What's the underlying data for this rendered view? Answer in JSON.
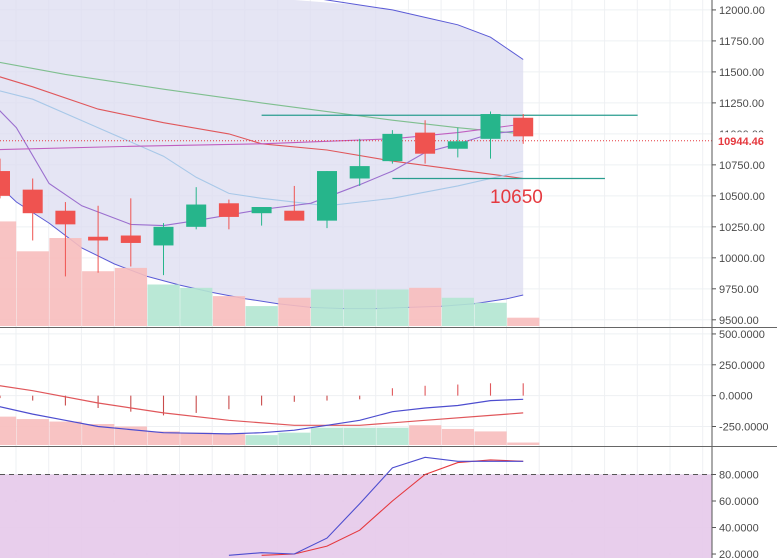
{
  "chart_data": [
    {
      "type": "candlestick",
      "panel": "price",
      "yticks": [
        "12000.00",
        "11750.00",
        "11500.00",
        "11250.00",
        "11000.00",
        "10750.00",
        "10500.00",
        "10250.00",
        "10000.00",
        "9750.00",
        "9500.00"
      ],
      "ylim": [
        9450,
        12080
      ],
      "current_price": "10944.46",
      "annotation": "10650",
      "candles": [
        {
          "o": 10700,
          "h": 10800,
          "l": 10480,
          "c": 10500
        },
        {
          "o": 10550,
          "h": 10640,
          "l": 10140,
          "c": 10360
        },
        {
          "o": 10380,
          "h": 10450,
          "l": 9850,
          "c": 10270
        },
        {
          "o": 10170,
          "h": 10420,
          "l": 9880,
          "c": 10140
        },
        {
          "o": 10180,
          "h": 10480,
          "l": 9930,
          "c": 10120
        },
        {
          "o": 10100,
          "h": 10280,
          "l": 9860,
          "c": 10250
        },
        {
          "o": 10250,
          "h": 10570,
          "l": 10230,
          "c": 10430
        },
        {
          "o": 10440,
          "h": 10470,
          "l": 10230,
          "c": 10330
        },
        {
          "o": 10360,
          "h": 10400,
          "l": 10260,
          "c": 10410
        },
        {
          "o": 10380,
          "h": 10580,
          "l": 10310,
          "c": 10300
        },
        {
          "o": 10300,
          "h": 10700,
          "l": 10240,
          "c": 10700
        },
        {
          "o": 10640,
          "h": 10960,
          "l": 10580,
          "c": 10740
        },
        {
          "o": 10780,
          "h": 11030,
          "l": 10760,
          "c": 11000
        },
        {
          "o": 11010,
          "h": 11110,
          "l": 10760,
          "c": 10840
        },
        {
          "o": 10880,
          "h": 11050,
          "l": 10810,
          "c": 10940
        },
        {
          "o": 10960,
          "h": 11180,
          "l": 10800,
          "c": 11160
        },
        {
          "o": 11130,
          "h": 11160,
          "l": 10920,
          "c": 10980
        }
      ],
      "volume": [
        0.63,
        0.45,
        0.53,
        0.33,
        0.35,
        0.25,
        0.23,
        0.18,
        0.12,
        0.17,
        0.22,
        0.22,
        0.22,
        0.23,
        0.17,
        0.14,
        0.05
      ],
      "bollinger_upper": [
        {
          "x": 9,
          "y": 12120
        },
        {
          "x": 11,
          "y": 12040
        },
        {
          "x": 12,
          "y": 12000
        },
        {
          "x": 13,
          "y": 11940
        },
        {
          "x": 14,
          "y": 11880
        },
        {
          "x": 15,
          "y": 11780
        },
        {
          "x": 16,
          "y": 11600
        }
      ],
      "bollinger_lower": [
        {
          "x": -0.5,
          "y": 10700
        },
        {
          "x": 0.5,
          "y": 10450
        },
        {
          "x": 1.5,
          "y": 10280
        },
        {
          "x": 2.5,
          "y": 10080
        },
        {
          "x": 3.5,
          "y": 9950
        },
        {
          "x": 4.5,
          "y": 9850
        },
        {
          "x": 5.5,
          "y": 9780
        },
        {
          "x": 6.5,
          "y": 9720
        },
        {
          "x": 7.5,
          "y": 9670
        },
        {
          "x": 8.5,
          "y": 9630
        },
        {
          "x": 9.5,
          "y": 9600
        },
        {
          "x": 10.5,
          "y": 9590
        },
        {
          "x": 11.5,
          "y": 9590
        },
        {
          "x": 12.5,
          "y": 9600
        },
        {
          "x": 13.5,
          "y": 9610
        },
        {
          "x": 14.5,
          "y": 9630
        },
        {
          "x": 15.5,
          "y": 9670
        },
        {
          "x": 16,
          "y": 9700
        }
      ],
      "ma_lines": [
        {
          "color": "#7fbf8f",
          "points": [
            {
              "x": -0.5,
              "y": 11600
            },
            {
              "x": 2,
              "y": 11480
            },
            {
              "x": 5,
              "y": 11360
            },
            {
              "x": 8,
              "y": 11250
            },
            {
              "x": 10,
              "y": 11180
            },
            {
              "x": 12,
              "y": 11110
            },
            {
              "x": 14,
              "y": 11050
            },
            {
              "x": 16,
              "y": 11000
            }
          ]
        },
        {
          "color": "#e0575b",
          "points": [
            {
              "x": -0.5,
              "y": 11500
            },
            {
              "x": 1,
              "y": 11380
            },
            {
              "x": 3,
              "y": 11200
            },
            {
              "x": 5,
              "y": 11090
            },
            {
              "x": 7,
              "y": 11000
            },
            {
              "x": 8,
              "y": 10920
            },
            {
              "x": 10,
              "y": 10870
            },
            {
              "x": 12,
              "y": 10780
            },
            {
              "x": 14,
              "y": 10710
            },
            {
              "x": 16,
              "y": 10640
            }
          ]
        },
        {
          "color": "#a8c8e8",
          "points": [
            {
              "x": -0.5,
              "y": 11380
            },
            {
              "x": 1,
              "y": 11280
            },
            {
              "x": 3,
              "y": 11050
            },
            {
              "x": 5,
              "y": 10820
            },
            {
              "x": 6,
              "y": 10650
            },
            {
              "x": 7,
              "y": 10520
            },
            {
              "x": 8,
              "y": 10480
            },
            {
              "x": 10,
              "y": 10420
            },
            {
              "x": 12,
              "y": 10480
            },
            {
              "x": 14,
              "y": 10580
            },
            {
              "x": 16,
              "y": 10700
            }
          ]
        },
        {
          "color": "#9b6fcf",
          "points": [
            {
              "x": -0.5,
              "y": 11320
            },
            {
              "x": 0.5,
              "y": 11050
            },
            {
              "x": 1.5,
              "y": 10600
            },
            {
              "x": 2.5,
              "y": 10420
            },
            {
              "x": 4,
              "y": 10270
            },
            {
              "x": 5,
              "y": 10260
            },
            {
              "x": 6,
              "y": 10300
            },
            {
              "x": 8,
              "y": 10390
            },
            {
              "x": 9.5,
              "y": 10440
            },
            {
              "x": 11,
              "y": 10590
            },
            {
              "x": 12,
              "y": 10700
            },
            {
              "x": 13,
              "y": 10850
            },
            {
              "x": 14,
              "y": 10920
            },
            {
              "x": 15,
              "y": 11000
            },
            {
              "x": 16,
              "y": 11030
            }
          ]
        },
        {
          "color": "#c060c0",
          "points": [
            {
              "x": -0.5,
              "y": 10870
            },
            {
              "x": 4,
              "y": 10900
            },
            {
              "x": 8,
              "y": 10920
            },
            {
              "x": 12,
              "y": 10960
            },
            {
              "x": 14,
              "y": 11010
            },
            {
              "x": 16,
              "y": 11080
            }
          ]
        }
      ],
      "hlines": [
        {
          "y": 11150,
          "x_from": 8,
          "x_to": 19.5
        },
        {
          "y": 10640,
          "x_from": 12,
          "x_to": 18.5
        }
      ]
    },
    {
      "type": "macd",
      "panel": "indicator",
      "yticks": [
        "500.0000",
        "250.0000",
        "0.0000",
        "-250.0000"
      ],
      "ylim": [
        -400,
        540
      ],
      "histogram": [
        -170,
        -190,
        -210,
        -230,
        -250,
        -290,
        -300,
        -310,
        -320,
        -300,
        -260,
        -260,
        -260,
        -240,
        -270,
        -290,
        -380
      ],
      "signal_bars": [
        -20,
        -40,
        -80,
        -100,
        -130,
        -160,
        -140,
        -110,
        -80,
        -50,
        -40,
        -30,
        60,
        80,
        90,
        100,
        100
      ],
      "macd_line": [
        {
          "x": -0.5,
          "y": 100
        },
        {
          "x": 1,
          "y": 40
        },
        {
          "x": 3,
          "y": -60
        },
        {
          "x": 5,
          "y": -140
        },
        {
          "x": 7,
          "y": -200
        },
        {
          "x": 9,
          "y": -240
        },
        {
          "x": 11,
          "y": -240
        },
        {
          "x": 13,
          "y": -200
        },
        {
          "x": 15,
          "y": -160
        },
        {
          "x": 16,
          "y": -140
        }
      ],
      "signal_line": [
        {
          "x": -0.5,
          "y": -60
        },
        {
          "x": 1,
          "y": -150
        },
        {
          "x": 2,
          "y": -200
        },
        {
          "x": 3,
          "y": -250
        },
        {
          "x": 5,
          "y": -300
        },
        {
          "x": 7,
          "y": -310
        },
        {
          "x": 8,
          "y": -300
        },
        {
          "x": 9,
          "y": -280
        },
        {
          "x": 10,
          "y": -240
        },
        {
          "x": 11,
          "y": -200
        },
        {
          "x": 12,
          "y": -130
        },
        {
          "x": 13,
          "y": -100
        },
        {
          "x": 14,
          "y": -80
        },
        {
          "x": 15,
          "y": -40
        },
        {
          "x": 16,
          "y": -30
        }
      ]
    },
    {
      "type": "stochastic",
      "panel": "oscillator",
      "yticks": [
        "80.0000",
        "60.0000",
        "40.0000",
        "20.0000"
      ],
      "ylim": [
        17,
        100
      ],
      "overbought": 80,
      "k_line": [
        {
          "x": 7,
          "y": 19
        },
        {
          "x": 8,
          "y": 21
        },
        {
          "x": 9,
          "y": 20
        },
        {
          "x": 10,
          "y": 32
        },
        {
          "x": 11,
          "y": 58
        },
        {
          "x": 12,
          "y": 85
        },
        {
          "x": 13,
          "y": 93
        },
        {
          "x": 14,
          "y": 90
        },
        {
          "x": 15,
          "y": 90
        },
        {
          "x": 16,
          "y": 90
        }
      ],
      "d_line": [
        {
          "x": 8,
          "y": 19
        },
        {
          "x": 9,
          "y": 20
        },
        {
          "x": 10,
          "y": 26
        },
        {
          "x": 11,
          "y": 38
        },
        {
          "x": 12,
          "y": 60
        },
        {
          "x": 13,
          "y": 80
        },
        {
          "x": 14,
          "y": 89
        },
        {
          "x": 15,
          "y": 91
        },
        {
          "x": 16,
          "y": 90
        }
      ]
    }
  ]
}
